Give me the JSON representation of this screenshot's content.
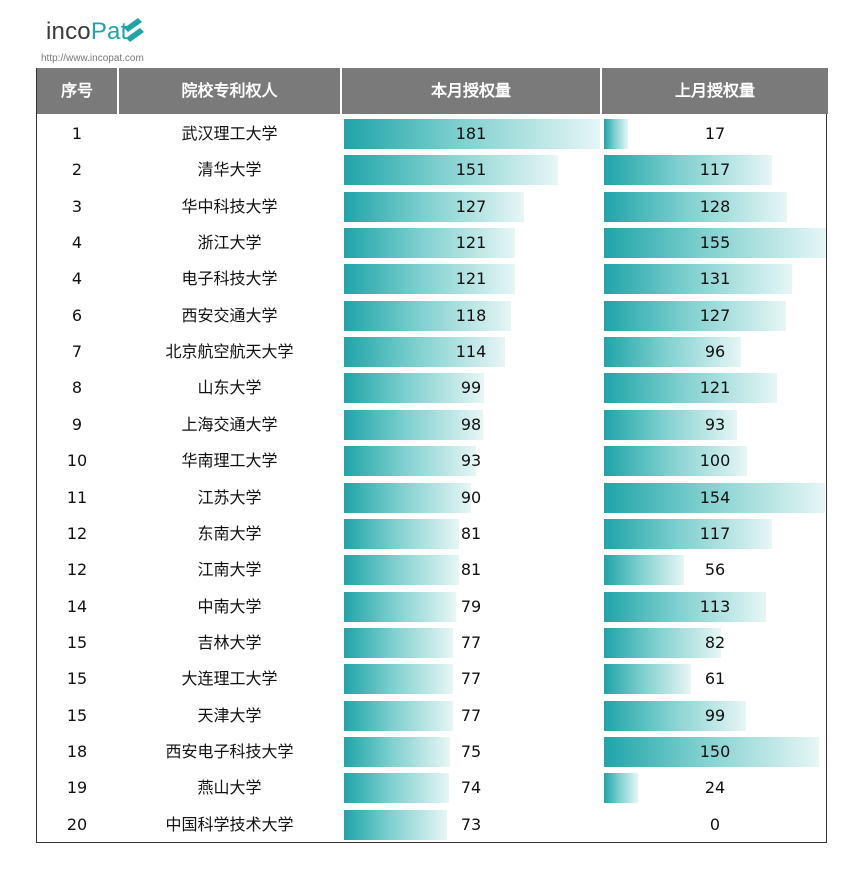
{
  "logo": {
    "text_a": "inco",
    "text_b": "Pat",
    "url": "http://www.incopat.com"
  },
  "colors": {
    "header_bg": "#7a7a7a",
    "bar_start": "#1fa4a8",
    "bar_end": "#e6f6f5",
    "accent": "#1fa4a8"
  },
  "chart_data": {
    "type": "table",
    "columns": [
      "序号",
      "院校专利权人",
      "本月授权量",
      "上月授权量"
    ],
    "rows": [
      {
        "rank": "1",
        "name": "武汉理工大学",
        "current": 181,
        "previous": 17
      },
      {
        "rank": "2",
        "name": "清华大学",
        "current": 151,
        "previous": 117
      },
      {
        "rank": "3",
        "name": "华中科技大学",
        "current": 127,
        "previous": 128
      },
      {
        "rank": "4",
        "name": "浙江大学",
        "current": 121,
        "previous": 155
      },
      {
        "rank": "4",
        "name": "电子科技大学",
        "current": 121,
        "previous": 131
      },
      {
        "rank": "6",
        "name": "西安交通大学",
        "current": 118,
        "previous": 127
      },
      {
        "rank": "7",
        "name": "北京航空航天大学",
        "current": 114,
        "previous": 96
      },
      {
        "rank": "8",
        "name": "山东大学",
        "current": 99,
        "previous": 121
      },
      {
        "rank": "9",
        "name": "上海交通大学",
        "current": 98,
        "previous": 93
      },
      {
        "rank": "10",
        "name": "华南理工大学",
        "current": 93,
        "previous": 100
      },
      {
        "rank": "11",
        "name": "江苏大学",
        "current": 90,
        "previous": 154
      },
      {
        "rank": "12",
        "name": "东南大学",
        "current": 81,
        "previous": 117
      },
      {
        "rank": "12",
        "name": "江南大学",
        "current": 81,
        "previous": 56
      },
      {
        "rank": "14",
        "name": "中南大学",
        "current": 79,
        "previous": 113
      },
      {
        "rank": "15",
        "name": "吉林大学",
        "current": 77,
        "previous": 82
      },
      {
        "rank": "15",
        "name": "大连理工大学",
        "current": 77,
        "previous": 61
      },
      {
        "rank": "15",
        "name": "天津大学",
        "current": 77,
        "previous": 99
      },
      {
        "rank": "18",
        "name": "西安电子科技大学",
        "current": 75,
        "previous": 150
      },
      {
        "rank": "19",
        "name": "燕山大学",
        "current": 74,
        "previous": 24
      },
      {
        "rank": "20",
        "name": "中国科学技术大学",
        "current": 73,
        "previous": 0
      }
    ]
  }
}
